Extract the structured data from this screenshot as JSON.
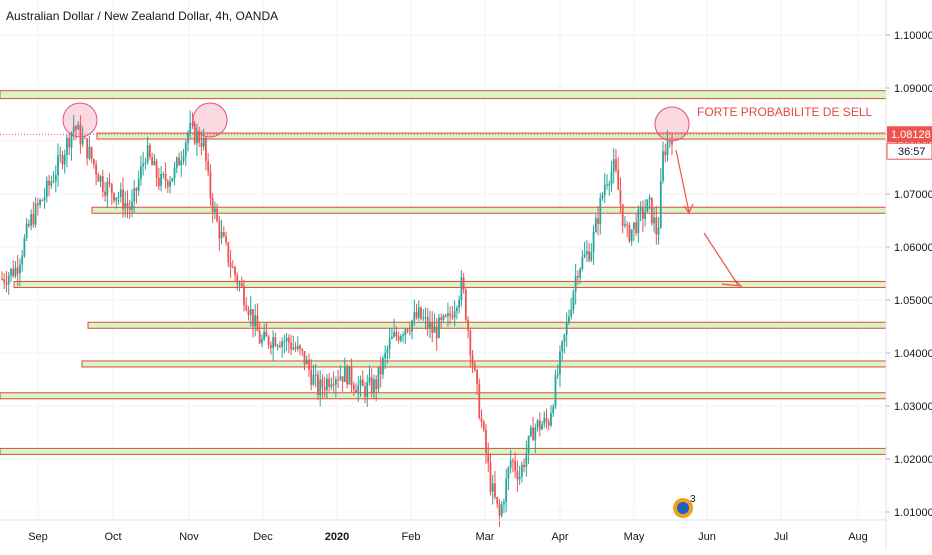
{
  "chart_data": {
    "type": "candlestick",
    "title": "Australian Dollar / New Zealand Dollar, 4h, OANDA",
    "x_tick_labels": [
      "Sep",
      "Oct",
      "Nov",
      "Dec",
      "2020",
      "Feb",
      "Mar",
      "Apr",
      "May",
      "Jun",
      "Jul",
      "Aug"
    ],
    "y_tick_labels": [
      "1.10000",
      "1.09000",
      "1.08000",
      "1.07000",
      "1.06000",
      "1.05000",
      "1.04000",
      "1.03000",
      "1.02000",
      "1.01000"
    ],
    "ylim": [
      1.0075,
      1.1125
    ],
    "grid": true,
    "current_price": "1.08128",
    "countdown": "36:57",
    "up_color": "#26a69a",
    "down_color": "#ef5350",
    "annotation_text": "FORTE PROBABILITE DE SELL",
    "annotation_color": "#e24a4a",
    "price_path": [
      [
        0,
        1.054
      ],
      [
        0.5,
        1.056
      ],
      [
        1.0,
        1.065
      ],
      [
        1.5,
        1.07
      ],
      [
        2.0,
        1.076
      ],
      [
        2.5,
        1.083
      ],
      [
        3.0,
        1.078
      ],
      [
        3.5,
        1.072
      ],
      [
        4.0,
        1.07
      ],
      [
        4.5,
        1.067
      ],
      [
        5.0,
        1.078
      ],
      [
        5.5,
        1.072
      ],
      [
        6.0,
        1.074
      ],
      [
        6.5,
        1.082
      ],
      [
        7.0,
        1.08
      ],
      [
        7.2,
        1.071
      ],
      [
        7.5,
        1.064
      ],
      [
        8.0,
        1.056
      ],
      [
        8.5,
        1.05
      ],
      [
        9.0,
        1.042
      ],
      [
        9.5,
        1.043
      ],
      [
        10.0,
        1.042
      ],
      [
        10.5,
        1.039
      ],
      [
        11.0,
        1.033
      ],
      [
        11.5,
        1.036
      ],
      [
        12.0,
        1.036
      ],
      [
        12.5,
        1.033
      ],
      [
        13.0,
        1.034
      ],
      [
        13.5,
        1.042
      ],
      [
        14.0,
        1.045
      ],
      [
        14.5,
        1.047
      ],
      [
        15.0,
        1.044
      ],
      [
        15.5,
        1.046
      ],
      [
        16.0,
        1.053
      ],
      [
        16.5,
        1.033
      ],
      [
        17.0,
        1.015
      ],
      [
        17.3,
        1.009
      ],
      [
        17.7,
        1.02
      ],
      [
        18.0,
        1.017
      ],
      [
        18.5,
        1.026
      ],
      [
        19.0,
        1.027
      ],
      [
        19.5,
        1.041
      ],
      [
        20.0,
        1.056
      ],
      [
        20.5,
        1.06
      ],
      [
        21.0,
        1.073
      ],
      [
        21.3,
        1.075
      ],
      [
        21.7,
        1.062
      ],
      [
        22.0,
        1.064
      ],
      [
        22.5,
        1.068
      ],
      [
        22.8,
        1.062
      ],
      [
        23.0,
        1.078
      ],
      [
        23.3,
        1.0813
      ]
    ],
    "zones": [
      {
        "low": 1.088,
        "high": 1.0895
      },
      {
        "low": 1.0805,
        "high": 1.0815
      },
      {
        "low": 1.0665,
        "high": 1.0675
      },
      {
        "low": 1.0525,
        "high": 1.0535
      },
      {
        "low": 1.0448,
        "high": 1.0458
      },
      {
        "low": 1.0375,
        "high": 1.0385
      },
      {
        "low": 1.0315,
        "high": 1.0325
      },
      {
        "low": 1.021,
        "high": 1.022
      }
    ],
    "badge_count": "3"
  }
}
